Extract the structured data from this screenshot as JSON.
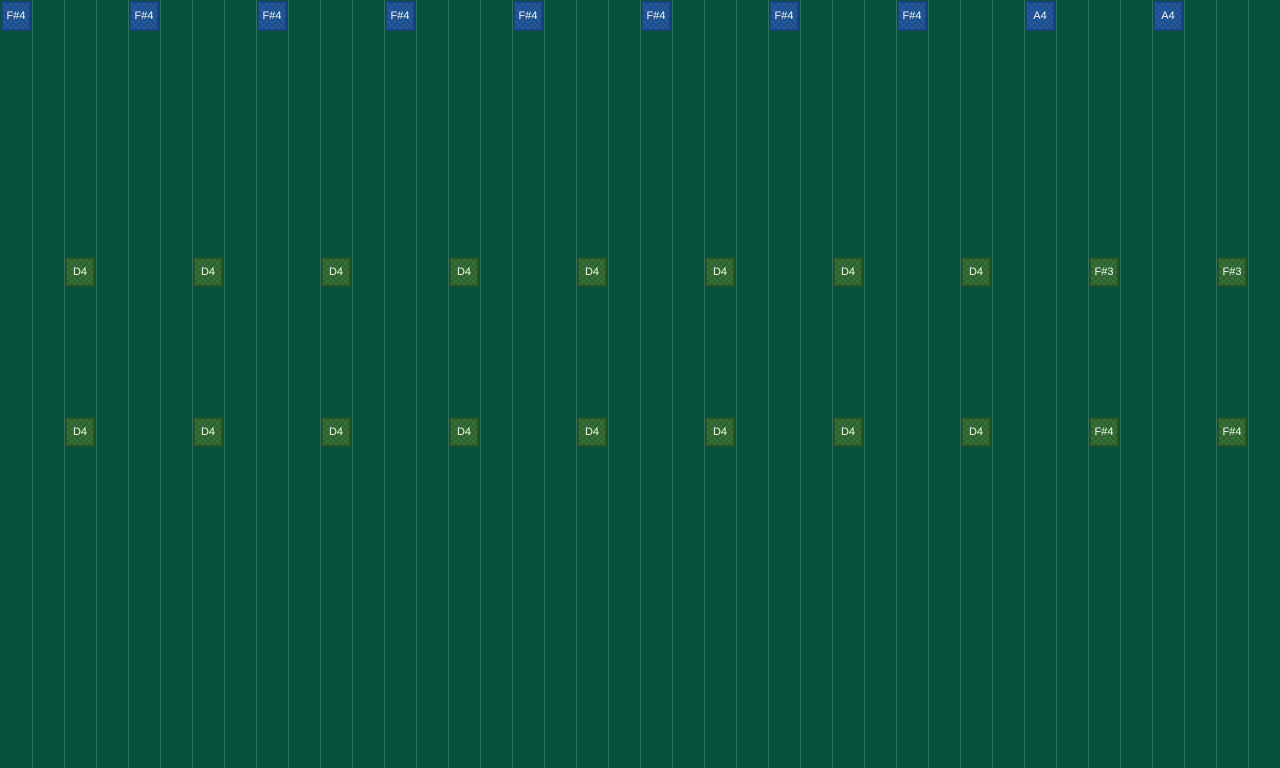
{
  "colors": {
    "background": "#06503e",
    "grid_line": "#2d705c",
    "note_blue": "#1e4f8c",
    "note_green": "#2d622f"
  },
  "lanes": [
    {
      "color": "blue",
      "notes": [
        {
          "col": 0,
          "label": "F#4"
        },
        {
          "col": 4,
          "label": "F#4"
        },
        {
          "col": 8,
          "label": "F#4"
        },
        {
          "col": 12,
          "label": "F#4"
        },
        {
          "col": 16,
          "label": "F#4"
        },
        {
          "col": 20,
          "label": "F#4"
        },
        {
          "col": 24,
          "label": "F#4"
        },
        {
          "col": 28,
          "label": "F#4"
        },
        {
          "col": 32,
          "label": "A4"
        },
        {
          "col": 36,
          "label": "A4"
        }
      ]
    },
    {
      "color": "green",
      "notes": [
        {
          "col": 2,
          "label": "D4"
        },
        {
          "col": 6,
          "label": "D4"
        },
        {
          "col": 10,
          "label": "D4"
        },
        {
          "col": 14,
          "label": "D4"
        },
        {
          "col": 18,
          "label": "D4"
        },
        {
          "col": 22,
          "label": "D4"
        },
        {
          "col": 26,
          "label": "D4"
        },
        {
          "col": 30,
          "label": "D4"
        },
        {
          "col": 34,
          "label": "F#3"
        },
        {
          "col": 38,
          "label": "F#3"
        }
      ]
    },
    {
      "color": "green",
      "notes": [
        {
          "col": 2,
          "label": "D4"
        },
        {
          "col": 6,
          "label": "D4"
        },
        {
          "col": 10,
          "label": "D4"
        },
        {
          "col": 14,
          "label": "D4"
        },
        {
          "col": 18,
          "label": "D4"
        },
        {
          "col": 22,
          "label": "D4"
        },
        {
          "col": 26,
          "label": "D4"
        },
        {
          "col": 30,
          "label": "D4"
        },
        {
          "col": 34,
          "label": "F#4"
        },
        {
          "col": 38,
          "label": "F#4"
        }
      ]
    }
  ]
}
